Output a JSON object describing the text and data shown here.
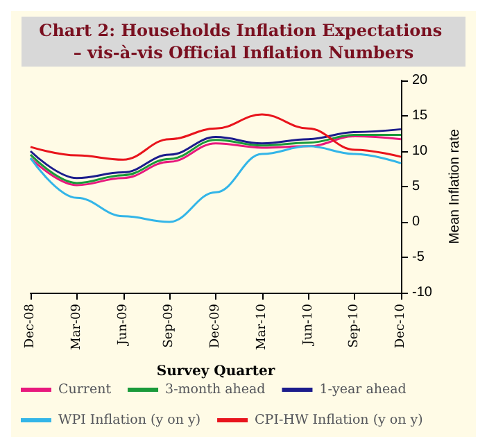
{
  "chart_data": {
    "type": "line",
    "title": "Chart 2: Households Inflation Expectations – vis-à-vis Official Inflation Numbers",
    "xlabel": "Survey Quarter",
    "ylabel": "Mean Inflation rate",
    "categories": [
      "Dec-08",
      "Mar-09",
      "Jun-09",
      "Sep-09",
      "Dec-09",
      "Mar-10",
      "Jun-10",
      "Sep-10",
      "Dec-10"
    ],
    "ylim": [
      -10,
      20
    ],
    "yticks": [
      -10,
      -5,
      0,
      5,
      10,
      15,
      20
    ],
    "grid": false,
    "legend": "bottom",
    "marker": "none",
    "series": [
      {
        "name": "Current",
        "color": "#e8197d",
        "values": [
          9,
          5.2,
          6.2,
          8.5,
          11.1,
          10.5,
          10.7,
          12.1,
          11.7
        ]
      },
      {
        "name": "3-month ahead",
        "color": "#1a9a3a",
        "values": [
          9.5,
          5.5,
          6.6,
          8.9,
          11.6,
          10.8,
          11.2,
          12.3,
          12.3
        ]
      },
      {
        "name": "1-year ahead",
        "color": "#1c1c8c",
        "values": [
          10,
          6.2,
          7,
          9.5,
          12,
          11.1,
          11.7,
          12.7,
          13.1
        ]
      },
      {
        "name": "WPI Inflation (y on y)",
        "color": "#33b5e8",
        "values": [
          9,
          3.4,
          0.8,
          0,
          4.2,
          9.6,
          10.7,
          9.6,
          8.3
        ]
      },
      {
        "name": "CPI-HW Inflation (y on y)",
        "color": "#e8141c",
        "values": [
          10.6,
          9.4,
          8.8,
          11.7,
          13.2,
          15.2,
          13.2,
          10.2,
          9.2
        ]
      }
    ]
  }
}
